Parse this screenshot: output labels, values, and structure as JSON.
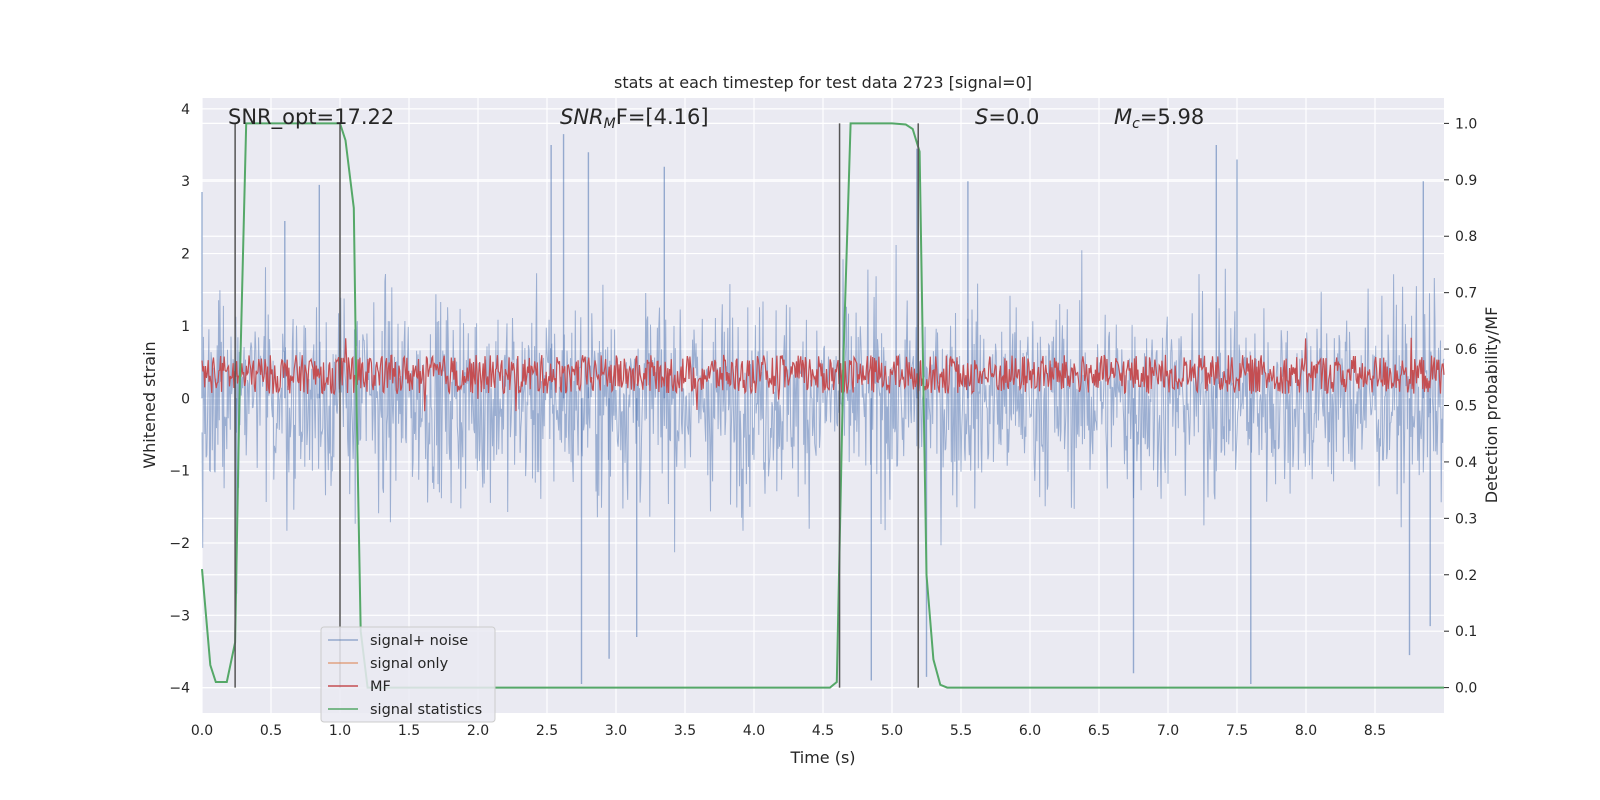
{
  "chart_data": {
    "type": "line",
    "title": "stats at each timestep for test data 2723 [signal=0]",
    "xlabel": "Time (s)",
    "ylabel": "Whitened strain",
    "ylabel_right": "Detection probability/MF",
    "xlim": [
      0.0,
      9.0
    ],
    "ylim": [
      -4.35,
      4.15
    ],
    "ylim_right": [
      -0.045,
      1.045
    ],
    "x_ticks": [
      "0.0",
      "0.5",
      "1.0",
      "1.5",
      "2.0",
      "2.5",
      "3.0",
      "3.5",
      "4.0",
      "4.5",
      "5.0",
      "5.5",
      "6.0",
      "6.5",
      "7.0",
      "7.5",
      "8.0",
      "8.5"
    ],
    "y_ticks": [
      "−4",
      "−3",
      "−2",
      "−1",
      "0",
      "1",
      "2",
      "3",
      "4"
    ],
    "y_ticks_right": [
      "0.0",
      "0.1",
      "0.2",
      "0.3",
      "0.4",
      "0.5",
      "0.6",
      "0.7",
      "0.8",
      "0.9",
      "1.0"
    ],
    "grid": true,
    "legend_position": "lower-left",
    "annotations": {
      "snr_opt": "SNR_opt=17.22",
      "snr_mf_prefix": "SNR",
      "snr_mf_sub": "M",
      "snr_mf_suffix": "F=[4.16]",
      "s_name": "S",
      "s_value": "=0.0",
      "mc_name": "M",
      "mc_sub": "c",
      "mc_value": "=5.98"
    },
    "vertical_markers_s": [
      0.24,
      1.0,
      4.62,
      5.19
    ],
    "series": [
      {
        "name": "signal+ noise",
        "color": "#4c72b0",
        "axis": "left",
        "kind": "noise",
        "envelope_upper": 2.0,
        "envelope_lower": -2.0,
        "peaks_upper": [
          [
            0.0,
            2.85
          ],
          [
            0.6,
            2.45
          ],
          [
            0.85,
            2.95
          ],
          [
            2.53,
            3.5
          ],
          [
            2.62,
            3.65
          ],
          [
            2.8,
            3.4
          ],
          [
            3.35,
            3.2
          ],
          [
            5.18,
            3.45
          ],
          [
            5.55,
            3.0
          ],
          [
            7.35,
            3.5
          ],
          [
            7.5,
            3.3
          ],
          [
            8.85,
            3.0
          ]
        ],
        "peaks_lower": [
          [
            0.25,
            -2.7
          ],
          [
            2.75,
            -3.95
          ],
          [
            2.95,
            -3.6
          ],
          [
            3.15,
            -3.3
          ],
          [
            4.85,
            -3.9
          ],
          [
            5.25,
            -3.85
          ],
          [
            6.75,
            -3.8
          ],
          [
            7.6,
            -3.95
          ],
          [
            8.75,
            -3.55
          ],
          [
            8.9,
            -3.15
          ]
        ]
      },
      {
        "name": "signal only",
        "color": "#dd8452",
        "axis": "left",
        "values": []
      },
      {
        "name": "MF",
        "color": "#c44e52",
        "axis": "left",
        "kind": "mf",
        "center": 0.33,
        "halfwidth": 0.27
      },
      {
        "name": "signal statistics",
        "color": "#55a868",
        "axis": "right",
        "x": [
          0.0,
          0.06,
          0.1,
          0.18,
          0.24,
          0.27,
          0.32,
          1.0,
          1.04,
          1.1,
          1.12,
          1.15,
          1.2,
          4.55,
          4.6,
          4.65,
          4.7,
          4.75,
          5.0,
          5.1,
          5.15,
          5.2,
          5.25,
          5.3,
          5.35,
          5.4,
          9.0
        ],
        "y": [
          0.21,
          0.04,
          0.01,
          0.01,
          0.08,
          0.5,
          1.0,
          1.0,
          0.97,
          0.85,
          0.5,
          0.1,
          0.0,
          0.0,
          0.01,
          0.6,
          1.0,
          1.0,
          1.0,
          0.998,
          0.99,
          0.95,
          0.2,
          0.05,
          0.005,
          0.0,
          0.0
        ]
      }
    ]
  }
}
